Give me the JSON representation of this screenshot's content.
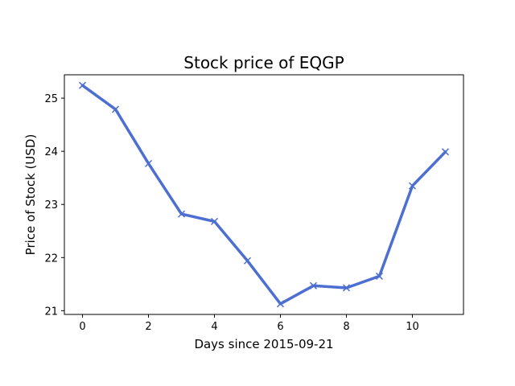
{
  "chart_data": {
    "type": "line",
    "title": "Stock price of EQGP",
    "xlabel": "Days since 2015-09-21",
    "ylabel": "Price of Stock (USD)",
    "x": [
      0,
      1,
      2,
      3,
      4,
      5,
      6,
      7,
      8,
      9,
      10,
      11
    ],
    "series": [
      {
        "values": [
          25.24,
          24.79,
          23.77,
          22.82,
          22.68,
          21.94,
          21.13,
          21.47,
          21.43,
          21.65,
          23.35,
          23.99
        ],
        "color": "#4c6fd1",
        "marker": "x"
      }
    ],
    "xlim": [
      -0.55,
      11.55
    ],
    "ylim": [
      20.93,
      25.44
    ],
    "xticks": [
      0,
      2,
      4,
      6,
      8,
      10
    ],
    "yticks": [
      21,
      22,
      23,
      24,
      25
    ],
    "grid": false
  }
}
